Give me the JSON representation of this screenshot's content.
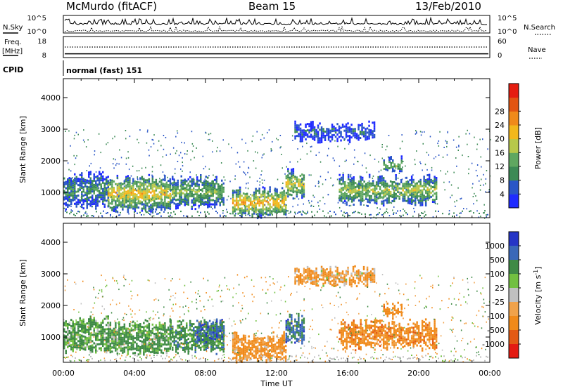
{
  "header": {
    "station": "McMurdo (fitACF)",
    "beam": "Beam 15",
    "date": "13/Feb/2010"
  },
  "noise_panel": {
    "left_label": "N.Sky",
    "right_label": "N.Search",
    "left_ticks": [
      "10^5",
      "10^0"
    ],
    "right_ticks": [
      "10^5",
      "10^0"
    ]
  },
  "freq_panel": {
    "left_label_1": "Freq.",
    "left_label_2": "[MHz]",
    "right_label": "Nave",
    "left_ticks": [
      "18",
      "8"
    ],
    "right_ticks": [
      "60",
      "0"
    ],
    "freq_mhz": 9.8,
    "nave": 30
  },
  "cpid": {
    "label": "CPID",
    "value": "normal (fast) 151"
  },
  "colors": {
    "power": [
      "#1f2bff",
      "#2a56c6",
      "#3c8a55",
      "#5fa760",
      "#b7c84a",
      "#f2b81c",
      "#f08a1a",
      "#e25512",
      "#e51d10"
    ],
    "velocity": [
      "#2535c6",
      "#3a68b8",
      "#3f8a46",
      "#72c041",
      "#c0c0c0",
      "#f0a24a",
      "#f08a1a",
      "#e35a14",
      "#e41b12"
    ]
  },
  "chart_data": [
    {
      "type": "heatmap",
      "title": "Power",
      "xlabel": "",
      "ylabel": "Slant Range [km]",
      "x_ticks": [
        "00:00",
        "04:00",
        "08:00",
        "12:00",
        "16:00",
        "20:00",
        "00:00"
      ],
      "y_ticks": [
        "1000",
        "2000",
        "3000",
        "4000"
      ],
      "ylim": [
        200,
        4600
      ],
      "colorbar": {
        "label": "Power [dB]",
        "ticks": [
          "4",
          "8",
          "12",
          "16",
          "20",
          "24",
          "28"
        ],
        "range": [
          0,
          30
        ]
      },
      "echo_regions": [
        {
          "t_start": 0.0,
          "t_end": 2.5,
          "range_km": [
            600,
            1600
          ],
          "value": 10
        },
        {
          "t_start": 2.5,
          "t_end": 6.0,
          "range_km": [
            500,
            1500
          ],
          "value": 20
        },
        {
          "t_start": 6.0,
          "t_end": 9.0,
          "range_km": [
            600,
            1500
          ],
          "value": 14
        },
        {
          "t_start": 9.5,
          "t_end": 12.5,
          "range_km": [
            300,
            1100
          ],
          "value": 22
        },
        {
          "t_start": 12.5,
          "t_end": 13.5,
          "range_km": [
            900,
            1700
          ],
          "value": 18
        },
        {
          "t_start": 15.5,
          "t_end": 21.0,
          "range_km": [
            700,
            1500
          ],
          "value": 16
        },
        {
          "t_start": 18.0,
          "t_end": 19.0,
          "range_km": [
            1700,
            2100
          ],
          "value": 14
        },
        {
          "t_start": 13.0,
          "t_end": 17.5,
          "range_km": [
            2700,
            3200
          ],
          "value": 6
        }
      ]
    },
    {
      "type": "heatmap",
      "title": "Velocity",
      "xlabel": "Time UT",
      "ylabel": "Slant Range [km]",
      "x_ticks": [
        "00:00",
        "04:00",
        "08:00",
        "12:00",
        "16:00",
        "20:00",
        "00:00"
      ],
      "y_ticks": [
        "1000",
        "2000",
        "3000",
        "4000"
      ],
      "ylim": [
        200,
        4600
      ],
      "colorbar": {
        "label": "Velocity [m s^-1]",
        "ticks": [
          "1000",
          "500",
          "100",
          "25",
          "-25",
          "-100",
          "-500",
          "-1000"
        ],
        "range": [
          -1000,
          1000
        ]
      },
      "echo_regions": [
        {
          "t_start": 0.0,
          "t_end": 2.5,
          "range_km": [
            600,
            1600
          ],
          "value": 150
        },
        {
          "t_start": 2.5,
          "t_end": 6.0,
          "range_km": [
            500,
            1500
          ],
          "value": 200
        },
        {
          "t_start": 6.0,
          "t_end": 9.0,
          "range_km": [
            600,
            1500
          ],
          "value": 300
        },
        {
          "t_start": 7.5,
          "t_end": 9.0,
          "range_km": [
            900,
            1500
          ],
          "value": 700
        },
        {
          "t_start": 9.5,
          "t_end": 12.5,
          "range_km": [
            300,
            1100
          ],
          "value": -200
        },
        {
          "t_start": 12.5,
          "t_end": 13.5,
          "range_km": [
            900,
            1700
          ],
          "value": 600
        },
        {
          "t_start": 15.5,
          "t_end": 21.0,
          "range_km": [
            700,
            1500
          ],
          "value": -300
        },
        {
          "t_start": 18.0,
          "t_end": 19.0,
          "range_km": [
            1700,
            2100
          ],
          "value": -300
        },
        {
          "t_start": 13.0,
          "t_end": 17.5,
          "range_km": [
            2700,
            3200
          ],
          "value": -100
        }
      ]
    }
  ]
}
